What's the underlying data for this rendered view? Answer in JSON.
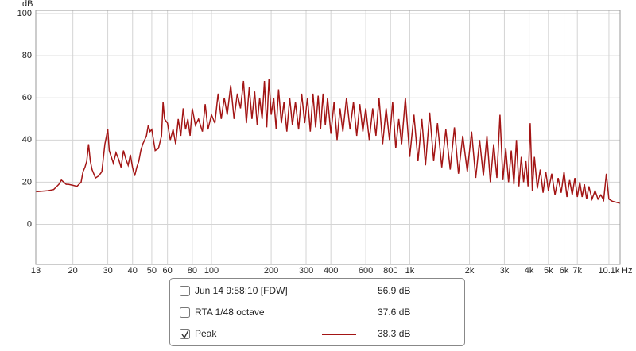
{
  "chart_data": {
    "type": "line",
    "y_label": "dB",
    "x_unit": "Hz",
    "log_x": true,
    "grid": true,
    "xlim": [
      13,
      11500
    ],
    "ylim": [
      -19,
      101.5
    ],
    "xticks": [
      13,
      20,
      30,
      40,
      50,
      60,
      80,
      100,
      200,
      300,
      400,
      600,
      800,
      {
        "value": 1000,
        "label": "1k"
      },
      {
        "value": 2000,
        "label": "2k"
      },
      {
        "value": 3000,
        "label": "3k"
      },
      {
        "value": 4000,
        "label": "4k"
      },
      {
        "value": 5000,
        "label": "5k"
      },
      {
        "value": 6000,
        "label": "6k"
      },
      {
        "value": 7000,
        "label": "7k"
      },
      {
        "value": 10100,
        "label": "10.1k"
      }
    ],
    "yticks": [
      100,
      80,
      60,
      40,
      20,
      0
    ],
    "other_traces": [
      {
        "name": "Jun 14 9:58:10 [FDW]",
        "readout": "56.9 dB",
        "checked": false,
        "color": "#a31515"
      },
      {
        "name": "RTA 1/48 octave",
        "readout": "37.6 dB",
        "checked": false,
        "color": "#000000"
      }
    ],
    "series": [
      {
        "name": "Peak",
        "readout": "38.3 dB",
        "checked": true,
        "color": "#a31515",
        "x": [
          13,
          15,
          16,
          17,
          17.5,
          18,
          18.5,
          19,
          20,
          21,
          22,
          22.5,
          23,
          23.5,
          24,
          24.5,
          25,
          26,
          27,
          28,
          29,
          30,
          30.5,
          31,
          32,
          33,
          34,
          35,
          36,
          37,
          38,
          39,
          40,
          41,
          42,
          43,
          44,
          45,
          46,
          47,
          48,
          49,
          50,
          52,
          54,
          56,
          57,
          58,
          60,
          62,
          64,
          66,
          68,
          70,
          72,
          74,
          76,
          78,
          80,
          83,
          86,
          90,
          93,
          96,
          100,
          104,
          108,
          112,
          116,
          120,
          125,
          130,
          135,
          140,
          145,
          150,
          155,
          160,
          165,
          170,
          175,
          180,
          185,
          190,
          195,
          200,
          206,
          212,
          218,
          225,
          232,
          240,
          248,
          256,
          265,
          275,
          285,
          295,
          305,
          315,
          325,
          335,
          345,
          355,
          365,
          375,
          385,
          400,
          415,
          430,
          445,
          460,
          480,
          500,
          520,
          540,
          560,
          580,
          600,
          625,
          650,
          675,
          700,
          730,
          760,
          790,
          820,
          850,
          880,
          910,
          950,
          1000,
          1050,
          1100,
          1150,
          1200,
          1260,
          1320,
          1380,
          1450,
          1520,
          1600,
          1680,
          1760,
          1850,
          1950,
          2050,
          2150,
          2250,
          2350,
          2450,
          2550,
          2650,
          2750,
          2850,
          2950,
          3050,
          3150,
          3250,
          3350,
          3450,
          3550,
          3650,
          3750,
          3850,
          3950,
          4050,
          4150,
          4250,
          4400,
          4550,
          4700,
          4850,
          5000,
          5200,
          5400,
          5600,
          5800,
          6000,
          6200,
          6400,
          6600,
          6800,
          7000,
          7200,
          7400,
          7600,
          7800,
          8000,
          8300,
          8600,
          8900,
          9200,
          9500,
          9800,
          10100,
          10500,
          11000,
          11500
        ],
        "values": [
          15.5,
          16,
          16.5,
          19,
          21,
          20,
          19,
          19,
          18.5,
          18,
          20,
          25,
          27,
          30,
          38,
          30,
          26,
          22,
          23,
          25,
          38,
          45,
          35,
          33,
          29,
          34,
          31,
          27,
          35,
          31,
          28,
          33,
          27,
          23,
          27,
          30,
          35,
          38,
          40,
          42,
          47,
          44,
          45,
          35,
          36,
          42,
          58,
          50,
          48,
          40,
          45,
          38,
          50,
          42,
          55,
          45,
          50,
          42,
          55,
          47,
          50,
          44,
          57,
          45,
          52,
          48,
          62,
          50,
          60,
          52,
          66,
          50,
          62,
          55,
          68,
          48,
          65,
          50,
          63,
          47,
          60,
          50,
          68,
          46,
          69,
          52,
          60,
          45,
          64,
          48,
          58,
          44,
          60,
          47,
          58,
          45,
          62,
          48,
          60,
          44,
          62,
          46,
          61,
          45,
          62,
          47,
          60,
          43,
          58,
          40,
          55,
          44,
          60,
          45,
          58,
          42,
          57,
          44,
          55,
          40,
          55,
          42,
          60,
          38,
          55,
          40,
          58,
          36,
          50,
          38,
          60,
          32,
          52,
          30,
          50,
          28,
          53,
          30,
          48,
          27,
          45,
          26,
          46,
          24,
          42,
          25,
          44,
          22,
          40,
          23,
          42,
          20,
          38,
          22,
          52,
          21,
          36,
          20,
          35,
          19,
          40,
          18,
          32,
          20,
          30,
          18,
          48,
          16,
          32,
          17,
          26,
          15,
          25,
          16,
          24,
          14,
          22,
          15,
          25,
          13,
          21,
          14,
          22,
          13,
          20,
          13,
          19,
          12,
          18,
          12,
          16,
          12,
          14,
          11.5,
          24,
          12,
          11,
          10.5,
          10
        ]
      }
    ]
  }
}
